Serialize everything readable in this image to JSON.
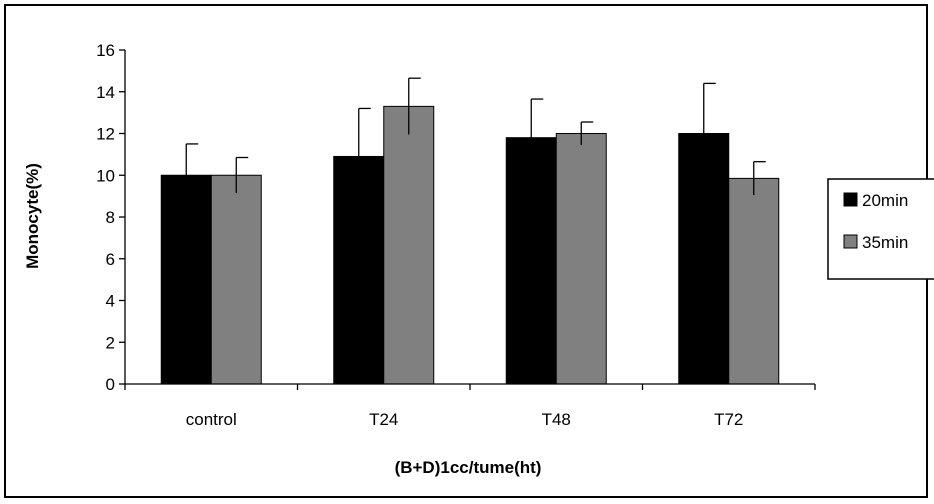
{
  "chart_data": {
    "type": "bar",
    "title": "",
    "xlabel": "(B+D)1cc/tume(ht)",
    "ylabel": "Monocyte(%)",
    "ylim": [
      0,
      16
    ],
    "yticks": [
      0,
      2,
      4,
      6,
      8,
      10,
      12,
      14,
      16
    ],
    "categories": [
      "control",
      "T24",
      "T48",
      "T72"
    ],
    "series": [
      {
        "name": "20min",
        "color": "#000000",
        "values": [
          10.0,
          10.9,
          11.8,
          12.0
        ],
        "errors": [
          1.5,
          2.3,
          1.85,
          2.4
        ]
      },
      {
        "name": "35min",
        "color": "#808080",
        "values": [
          10.0,
          13.3,
          12.0,
          9.85
        ],
        "errors": [
          0.85,
          1.35,
          0.55,
          0.8
        ]
      }
    ],
    "grid": false,
    "legend_position": "right"
  }
}
